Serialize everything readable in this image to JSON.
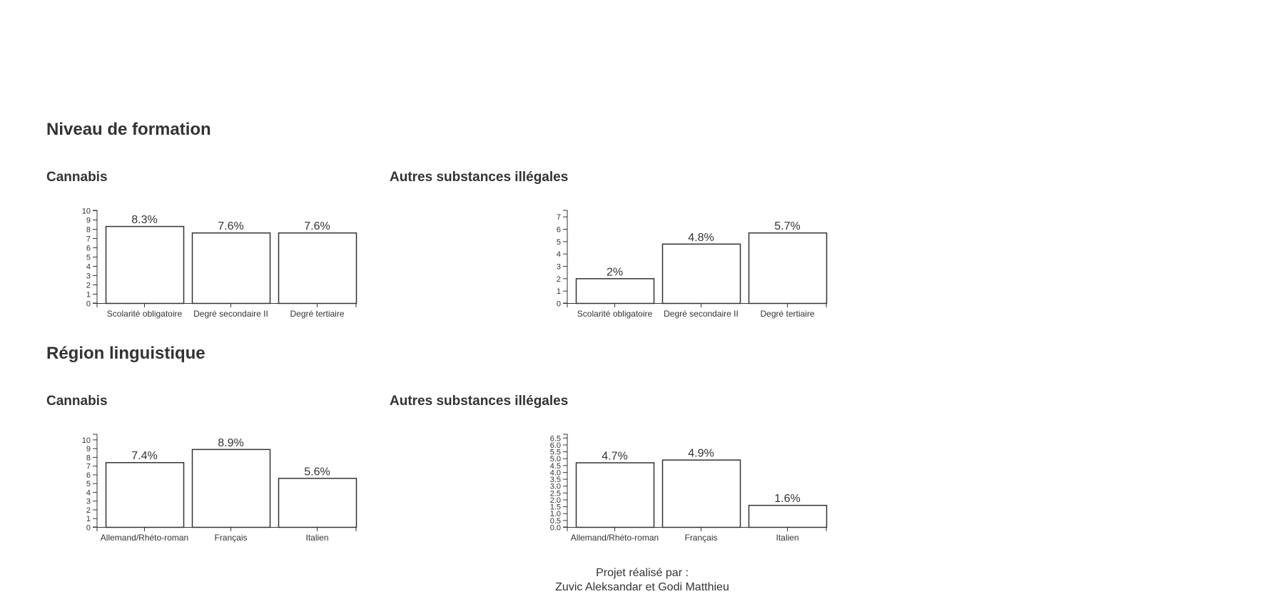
{
  "sections": [
    {
      "title": "Niveau de formation"
    },
    {
      "title": "Région linguistique"
    }
  ],
  "footer": {
    "line1": "Projet réalisé par :",
    "line2": "Zuvic Aleksandar et Godi Matthieu"
  },
  "colors": {
    "bar_fill": "#ffffff",
    "bar_stroke": "#333333",
    "text": "#333333"
  },
  "chart_data": [
    {
      "type": "bar",
      "title": "Cannabis",
      "categories": [
        "Scolarité obligatoire",
        "Degré secondaire II",
        "Degré tertiaire"
      ],
      "values": [
        8.3,
        7.6,
        7.6
      ],
      "data_labels": [
        "8.3%",
        "7.6%",
        "7.6%"
      ],
      "ylim": [
        0,
        10
      ],
      "yticks": [
        0,
        1,
        2,
        3,
        4,
        5,
        6,
        7,
        8,
        9,
        10
      ],
      "ytick_labels": [
        "0",
        "1",
        "2",
        "3",
        "4",
        "5",
        "6",
        "7",
        "8",
        "9",
        "10"
      ]
    },
    {
      "type": "bar",
      "title": "Autres substances illégales",
      "categories": [
        "Scolarité obligatoire",
        "Degré secondaire II",
        "Degré tertiaire"
      ],
      "values": [
        2,
        4.8,
        5.7
      ],
      "data_labels": [
        "2%",
        "4.8%",
        "5.7%"
      ],
      "ylim": [
        0,
        7.5
      ],
      "yticks": [
        0,
        1,
        2,
        3,
        4,
        5,
        6,
        7
      ],
      "ytick_labels": [
        "0",
        "1",
        "2",
        "3",
        "4",
        "5",
        "6",
        "7"
      ]
    },
    {
      "type": "bar",
      "title": "Cannabis",
      "categories": [
        "Allemand/Rhéto-roman",
        "Français",
        "Italien"
      ],
      "values": [
        7.4,
        8.9,
        5.6
      ],
      "data_labels": [
        "7.4%",
        "8.9%",
        "5.6%"
      ],
      "ylim": [
        0,
        10.6
      ],
      "yticks": [
        0,
        1,
        2,
        3,
        4,
        5,
        6,
        7,
        8,
        9,
        10
      ],
      "ytick_labels": [
        "0",
        "1",
        "2",
        "3",
        "4",
        "5",
        "6",
        "7",
        "8",
        "9",
        "10"
      ]
    },
    {
      "type": "bar",
      "title": "Autres substances illégales",
      "categories": [
        "Allemand/Rhéto-roman",
        "Français",
        "Italien"
      ],
      "values": [
        4.7,
        4.9,
        1.6
      ],
      "data_labels": [
        "4.7%",
        "4.9%",
        "1.6%"
      ],
      "ylim": [
        0,
        6.75
      ],
      "yticks": [
        0,
        0.5,
        1,
        1.5,
        2,
        2.5,
        3,
        3.5,
        4,
        4.5,
        5,
        5.5,
        6,
        6.5
      ],
      "ytick_labels": [
        "0.0",
        "0.5",
        "1.0",
        "1.5",
        "2.0",
        "2.5",
        "3.0",
        "3.5",
        "4.0",
        "4.5",
        "5.0",
        "5.5",
        "6.0",
        "6.5"
      ]
    }
  ]
}
